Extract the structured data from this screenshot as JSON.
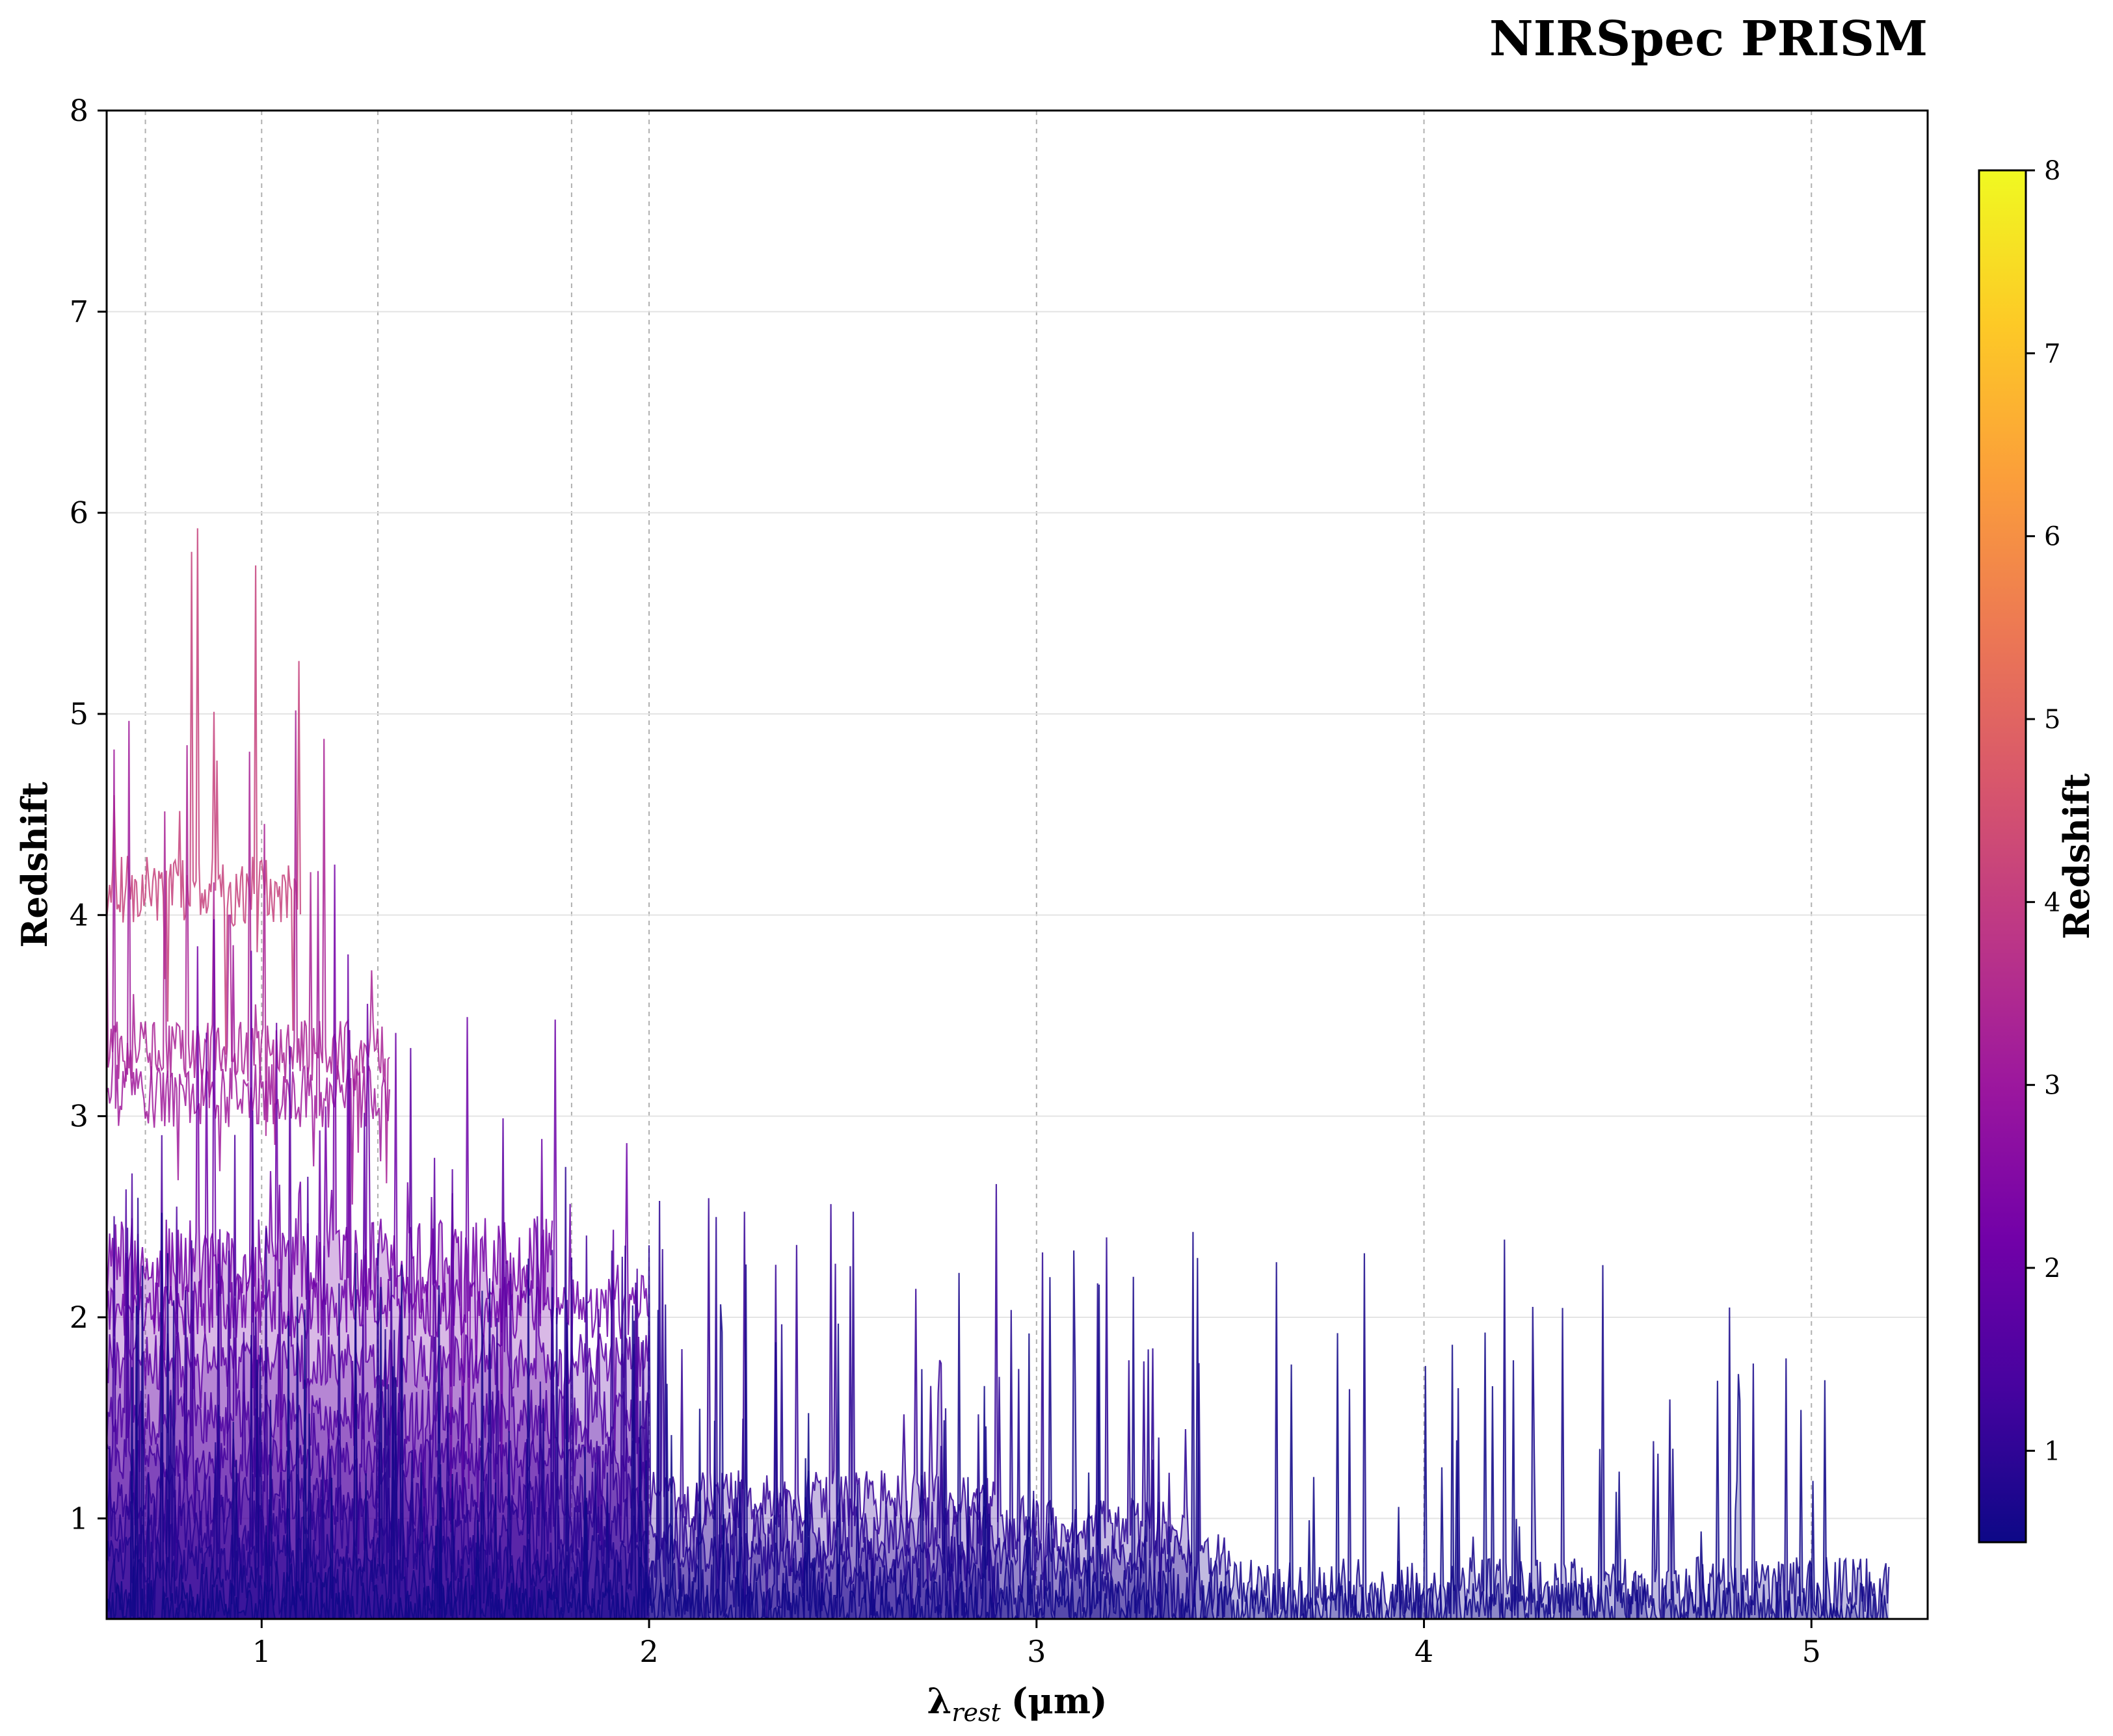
{
  "chart_data": {
    "type": "line",
    "title": "NIRSpec PRISM",
    "xlabel_main": "λ",
    "xlabel_sub": "rest",
    "xlabel_unit": "(μm)",
    "ylabel": "Redshift",
    "xlim": [
      0.6,
      5.3
    ],
    "ylim": [
      0.5,
      8
    ],
    "x_ticks": [
      1,
      2,
      3,
      4,
      5
    ],
    "y_ticks": [
      1,
      2,
      3,
      4,
      5,
      6,
      7,
      8
    ],
    "x_grid_lines": [
      0.7,
      1.0,
      1.3,
      1.8,
      2.0,
      3.0,
      4.0,
      5.0
    ],
    "grid": true,
    "colormap": "plasma",
    "colorbar": {
      "label": "Redshift",
      "range": [
        0.5,
        8
      ],
      "ticks": [
        1,
        2,
        3,
        4,
        5,
        6,
        7,
        8
      ],
      "stops": [
        "#0d0887",
        "#46039f",
        "#7201a8",
        "#9c179e",
        "#bd3786",
        "#d8576b",
        "#ed7953",
        "#fb9f3a",
        "#fdca26",
        "#f0f921"
      ]
    },
    "series": [
      {
        "z": 4.12,
        "x_range": [
          0.6,
          1.1
        ],
        "amp": 1.0,
        "fill": false
      },
      {
        "z": 3.32,
        "x_range": [
          0.6,
          1.33
        ],
        "amp": 0.9,
        "fill": false
      },
      {
        "z": 3.1,
        "x_range": [
          0.6,
          1.33
        ],
        "amp": 0.9,
        "fill": false
      },
      {
        "z": 2.25,
        "x_range": [
          0.6,
          1.75
        ],
        "amp": 1.4,
        "fill": true
      },
      {
        "z": 2.05,
        "x_range": [
          0.6,
          2.0
        ],
        "amp": 0.9,
        "fill": false
      },
      {
        "z": 1.78,
        "x_range": [
          0.6,
          2.0
        ],
        "amp": 0.8,
        "fill": true
      },
      {
        "z": 1.5,
        "x_range": [
          0.6,
          2.0
        ],
        "amp": 0.8,
        "fill": true
      },
      {
        "z": 1.3,
        "x_range": [
          0.6,
          2.0
        ],
        "amp": 0.6,
        "fill": true
      },
      {
        "z": 1.1,
        "x_range": [
          0.6,
          2.9
        ],
        "amp": 0.8,
        "fill": true
      },
      {
        "z": 0.95,
        "x_range": [
          0.6,
          3.4
        ],
        "amp": 0.9,
        "fill": true
      },
      {
        "z": 0.8,
        "x_range": [
          0.6,
          3.5
        ],
        "amp": 0.7,
        "fill": true
      },
      {
        "z": 0.65,
        "x_range": [
          0.6,
          5.2
        ],
        "amp": 0.9,
        "fill": true
      },
      {
        "z": 0.55,
        "x_range": [
          0.6,
          5.2
        ],
        "amp": 0.8,
        "fill": true
      }
    ]
  }
}
